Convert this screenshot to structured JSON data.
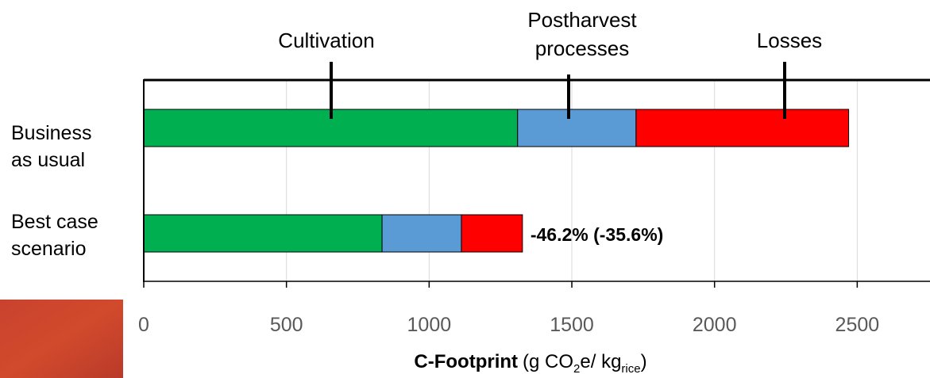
{
  "chart_data": {
    "type": "stacked-barh",
    "categories": [
      "Business as usual",
      "Best case scenario"
    ],
    "series": [
      {
        "name": "Cultivation",
        "color": "#00b050",
        "values": [
          1310,
          835
        ]
      },
      {
        "name": "Postharvest processes",
        "color": "#5b9bd5",
        "values": [
          415,
          278
        ]
      },
      {
        "name": "Losses",
        "color": "#ff0000",
        "values": [
          745,
          214
        ]
      }
    ],
    "annotations": [
      "-46.2% (-35.6%)"
    ],
    "x_label": [
      "C-Footprint",
      "(g CO",
      "2",
      "e/ kg",
      "rice",
      ")"
    ],
    "xlim": [
      0,
      2755
    ],
    "xticks": [
      0,
      500,
      1000,
      1500,
      2000,
      2500
    ],
    "grid": true
  }
}
